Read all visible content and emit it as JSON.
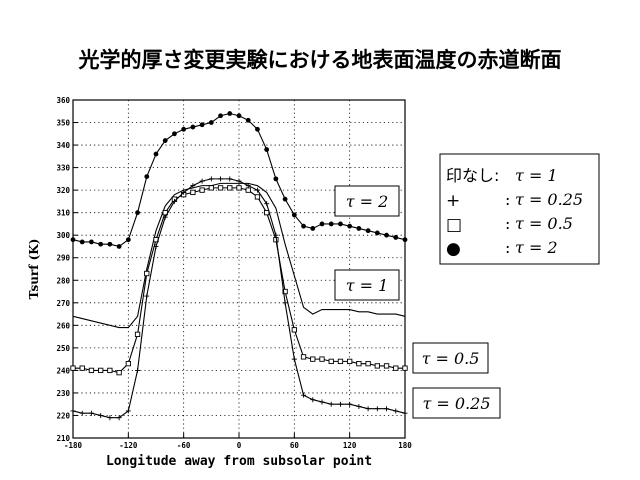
{
  "title": "光学的厚さ変更実験における地表面温度の赤道断面",
  "chart_data": {
    "type": "line",
    "xlabel": "Longitude away from subsolar point",
    "ylabel": "Tsurf (K)",
    "xlim": [
      -180,
      180
    ],
    "ylim": [
      210,
      360
    ],
    "xticks": [
      -180,
      -120,
      -60,
      0,
      60,
      120,
      180
    ],
    "yticks": [
      210,
      220,
      230,
      240,
      250,
      260,
      270,
      280,
      290,
      300,
      310,
      320,
      330,
      340,
      350,
      360
    ],
    "grid": true,
    "x": [
      -180,
      -170,
      -160,
      -150,
      -140,
      -130,
      -120,
      -110,
      -100,
      -90,
      -80,
      -70,
      -60,
      -50,
      -40,
      -30,
      -20,
      -10,
      0,
      10,
      20,
      30,
      40,
      50,
      60,
      70,
      80,
      90,
      100,
      110,
      120,
      130,
      140,
      150,
      160,
      170,
      180
    ],
    "series": [
      {
        "name": "τ = 2",
        "marker": "circle",
        "values": [
          298,
          297,
          297,
          296,
          296,
          295,
          298,
          310,
          326,
          336,
          342,
          345,
          347,
          348,
          349,
          350,
          353,
          354,
          353,
          351,
          347,
          338,
          325,
          316,
          309,
          304,
          303,
          305,
          305,
          305,
          304,
          303,
          302,
          301,
          300,
          299,
          298
        ]
      },
      {
        "name": "τ = 1",
        "marker": "none",
        "values": [
          264,
          263,
          262,
          261,
          260,
          259,
          259,
          264,
          285,
          302,
          313,
          318,
          320,
          321,
          322,
          322,
          323,
          323,
          323,
          323,
          322,
          319,
          312,
          296,
          282,
          268,
          265,
          267,
          267,
          267,
          267,
          266,
          266,
          265,
          265,
          265,
          264
        ]
      },
      {
        "name": "τ = 0.5",
        "marker": "square",
        "values": [
          241,
          241,
          240,
          240,
          240,
          239,
          243,
          256,
          283,
          298,
          310,
          316,
          318,
          319,
          320,
          321,
          321,
          321,
          321,
          320,
          317,
          310,
          298,
          275,
          258,
          246,
          245,
          245,
          244,
          244,
          244,
          243,
          243,
          242,
          242,
          241,
          241
        ]
      },
      {
        "name": "τ = 0.25",
        "marker": "plus",
        "values": [
          222,
          221,
          221,
          220,
          219,
          219,
          222,
          240,
          273,
          295,
          308,
          315,
          319,
          322,
          324,
          325,
          325,
          325,
          324,
          322,
          320,
          314,
          300,
          270,
          245,
          229,
          227,
          226,
          225,
          225,
          225,
          224,
          223,
          223,
          223,
          222,
          221
        ]
      }
    ],
    "legend": {
      "rows": [
        {
          "symbol": "",
          "label": "印なし:",
          "eq": "τ = 1"
        },
        {
          "symbol": "+",
          "label": ":",
          "eq": "τ = 0.25"
        },
        {
          "symbol": "□",
          "label": ":",
          "eq": "τ = 0.5"
        },
        {
          "symbol": "●",
          "label": ":",
          "eq": "τ = 2"
        }
      ]
    },
    "annotations": [
      "τ = 2",
      "τ = 1",
      "τ = 0.5",
      "τ = 0.25"
    ]
  }
}
